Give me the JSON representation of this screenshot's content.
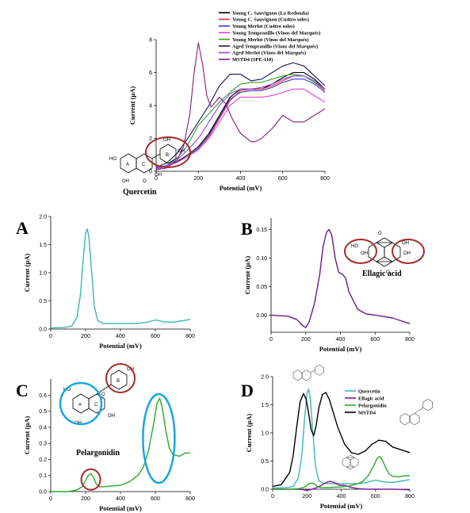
{
  "chart_data": [
    {
      "id": "top",
      "type": "line",
      "xlabel": "Potential (mV)",
      "ylabel": "Current (µA)",
      "xlim": [
        0,
        800
      ],
      "ylim": [
        0,
        8
      ],
      "xticks": [
        0,
        200,
        400,
        600,
        800
      ],
      "yticks": [
        0,
        2,
        4,
        6,
        8
      ],
      "legend_position": "top-right",
      "series": [
        {
          "name": "Young C. Sauvignon (La Redonda)",
          "color": "#000000",
          "x": [
            0,
            50,
            100,
            150,
            200,
            250,
            300,
            350,
            400,
            450,
            500,
            550,
            600,
            650,
            700,
            750,
            800
          ],
          "y": [
            0.15,
            0.3,
            0.6,
            1.0,
            1.5,
            2.3,
            3.4,
            4.5,
            5.0,
            5.0,
            5.0,
            5.3,
            5.7,
            6.0,
            6.0,
            5.6,
            5.0
          ]
        },
        {
          "name": "Young C. Sauvignon (Cu4tro soles)",
          "color": "#e8302a",
          "x": [
            0,
            50,
            100,
            150,
            200,
            250,
            300,
            350,
            400,
            450,
            500,
            550,
            600,
            650,
            700,
            750,
            800
          ],
          "y": [
            0.15,
            0.3,
            0.55,
            0.9,
            1.4,
            2.1,
            3.2,
            4.3,
            4.9,
            5.0,
            5.0,
            5.2,
            5.5,
            5.8,
            5.8,
            5.4,
            4.9
          ]
        },
        {
          "name": "Young Merlot (Cu4tro soles)",
          "color": "#3a3ad8",
          "x": [
            0,
            50,
            100,
            150,
            200,
            250,
            300,
            350,
            400,
            450,
            500,
            550,
            600,
            650,
            700,
            750,
            800
          ],
          "y": [
            0.15,
            0.3,
            0.55,
            0.9,
            1.4,
            2.2,
            3.3,
            4.4,
            4.8,
            4.9,
            4.9,
            5.1,
            5.4,
            5.6,
            5.6,
            5.3,
            4.8
          ]
        },
        {
          "name": "Young Tempranillo  (Vinos del Marqués)",
          "color": "#e040e0",
          "x": [
            0,
            50,
            100,
            150,
            200,
            250,
            300,
            350,
            400,
            450,
            500,
            550,
            600,
            650,
            700,
            750,
            800
          ],
          "y": [
            0.15,
            0.3,
            0.55,
            0.9,
            1.3,
            2.0,
            3.0,
            4.0,
            4.5,
            4.5,
            4.5,
            4.6,
            4.8,
            5.0,
            5.0,
            4.6,
            4.2
          ]
        },
        {
          "name": "Young Merlot (Vinos del Marqués)",
          "color": "#2ca02c",
          "x": [
            0,
            50,
            100,
            150,
            200,
            250,
            300,
            350,
            400,
            450,
            500,
            550,
            600,
            650,
            700,
            750,
            800
          ],
          "y": [
            0.2,
            0.35,
            0.8,
            1.6,
            2.8,
            3.5,
            4.2,
            4.8,
            5.3,
            5.4,
            5.4,
            5.6,
            5.8,
            5.9,
            5.8,
            5.4,
            5.0
          ]
        },
        {
          "name": "Aged Tempranillo (Vinos del Marqués)",
          "color": "#12125e",
          "x": [
            0,
            50,
            100,
            150,
            200,
            250,
            300,
            350,
            400,
            450,
            500,
            550,
            600,
            650,
            700,
            750,
            800
          ],
          "y": [
            0.25,
            0.5,
            1.1,
            2.0,
            3.0,
            4.0,
            5.2,
            5.9,
            5.9,
            5.5,
            5.6,
            6.0,
            6.4,
            6.6,
            6.4,
            5.8,
            5.2
          ]
        },
        {
          "name": "Aged Merlot (Vinos del Marqués)",
          "color": "#8a4ae8",
          "x": [
            0,
            50,
            100,
            150,
            200,
            250,
            300,
            350,
            400,
            450,
            500,
            550,
            600,
            650,
            700,
            750,
            800
          ],
          "y": [
            0.2,
            0.35,
            0.7,
            1.3,
            2.0,
            3.0,
            4.0,
            4.7,
            5.0,
            5.0,
            5.1,
            5.3,
            5.6,
            5.8,
            5.8,
            5.5,
            5.0
          ]
        },
        {
          "name": "MSTD4 (SPE-110)",
          "color": "#8b1a7a",
          "x": [
            0,
            50,
            100,
            130,
            160,
            180,
            200,
            220,
            240,
            260,
            280,
            300,
            330,
            360,
            400,
            450,
            470,
            500,
            550,
            600,
            650,
            700,
            750,
            800
          ],
          "y": [
            0.1,
            0.2,
            0.7,
            1.5,
            3.5,
            6.0,
            7.8,
            6.5,
            4.6,
            3.9,
            4.2,
            4.5,
            4.1,
            3.2,
            2.3,
            1.8,
            1.8,
            2.0,
            2.6,
            3.4,
            3.0,
            3.0,
            3.4,
            3.8
          ]
        }
      ]
    },
    {
      "id": "A",
      "type": "line",
      "panel_label": "A",
      "xlabel": "Potential (mV)",
      "ylabel": "Current (µA)",
      "xlim": [
        0,
        800
      ],
      "ylim": [
        0,
        2.0
      ],
      "xticks": [
        0,
        200,
        400,
        600,
        800
      ],
      "yticks": [
        0,
        0.5,
        1.0,
        1.5,
        2.0
      ],
      "ytick_labels": [
        "0.0",
        "0.5",
        "1.0",
        "1.5",
        "2.0"
      ],
      "molecule": "Quercetin",
      "series": [
        {
          "color": "#3fb6b6",
          "x": [
            0,
            80,
            120,
            150,
            170,
            185,
            200,
            210,
            220,
            235,
            250,
            270,
            300,
            350,
            400,
            500,
            550,
            600,
            650,
            700,
            800
          ],
          "y": [
            0.02,
            0.03,
            0.05,
            0.2,
            0.6,
            1.2,
            1.7,
            1.78,
            1.6,
            1.0,
            0.4,
            0.15,
            0.1,
            0.1,
            0.1,
            0.1,
            0.12,
            0.16,
            0.13,
            0.12,
            0.17
          ]
        }
      ]
    },
    {
      "id": "B",
      "type": "line",
      "panel_label": "B",
      "xlabel": "Potential (mV)",
      "ylabel": "Current (µA)",
      "xlim": [
        0,
        800
      ],
      "ylim": [
        -0.03,
        0.17
      ],
      "xticks": [
        0,
        200,
        400,
        600,
        800
      ],
      "yticks": [
        0.0,
        0.05,
        0.1,
        0.15
      ],
      "ytick_labels": [
        "0.00",
        "0.05",
        "0.10",
        "0.15"
      ],
      "molecule": "Ellagic acid",
      "series": [
        {
          "color": "#6a1a8a",
          "x": [
            0,
            100,
            150,
            180,
            200,
            220,
            250,
            280,
            300,
            320,
            335,
            350,
            370,
            390,
            410,
            430,
            450,
            500,
            550,
            600,
            700,
            800
          ],
          "y": [
            0.0,
            -0.002,
            -0.008,
            -0.018,
            -0.022,
            -0.012,
            0.02,
            0.07,
            0.12,
            0.145,
            0.15,
            0.14,
            0.1,
            0.075,
            0.072,
            0.065,
            0.04,
            0.01,
            0.002,
            0.0,
            -0.005,
            -0.015
          ]
        }
      ]
    },
    {
      "id": "C",
      "type": "line",
      "panel_label": "C",
      "xlabel": "Potential (mV)",
      "ylabel": "Current (µA)",
      "xlim": [
        0,
        800
      ],
      "ylim": [
        0,
        0.7
      ],
      "xticks": [
        0,
        200,
        400,
        600,
        800
      ],
      "yticks": [
        0.0,
        0.1,
        0.2,
        0.3,
        0.4,
        0.5,
        0.6
      ],
      "ytick_labels": [
        "0.0",
        "0.1",
        "0.2",
        "0.3",
        "0.4",
        "0.5",
        "0.6"
      ],
      "molecule": "Pelargonidin",
      "ring_labels": [
        "A",
        "C",
        "B"
      ],
      "series": [
        {
          "color": "#2aa82a",
          "x": [
            0,
            100,
            150,
            180,
            200,
            215,
            230,
            245,
            260,
            280,
            300,
            400,
            450,
            500,
            530,
            560,
            590,
            610,
            625,
            640,
            660,
            680,
            700,
            740,
            770,
            800
          ],
          "y": [
            0.0,
            0.0,
            0.01,
            0.03,
            0.07,
            0.1,
            0.11,
            0.09,
            0.05,
            0.03,
            0.03,
            0.04,
            0.06,
            0.1,
            0.15,
            0.25,
            0.42,
            0.55,
            0.58,
            0.52,
            0.38,
            0.27,
            0.23,
            0.22,
            0.24,
            0.24
          ]
        }
      ]
    },
    {
      "id": "D",
      "type": "line",
      "panel_label": "D",
      "xlabel": "Potential (mV)",
      "ylabel": "Current (µA)",
      "xlim": [
        0,
        800
      ],
      "ylim": [
        0,
        2.0
      ],
      "xticks": [
        0,
        200,
        400,
        600,
        800
      ],
      "yticks": [
        0,
        0.5,
        1.0,
        1.5,
        2.0
      ],
      "ytick_labels": [
        "0.0",
        "0.5",
        "1.0",
        "1.5",
        "2.0"
      ],
      "legend_position": "top-right",
      "series": [
        {
          "name": "Quercetin",
          "color": "#3fb6b6",
          "x": [
            0,
            80,
            120,
            150,
            170,
            185,
            200,
            210,
            220,
            235,
            250,
            270,
            300,
            350,
            400,
            500,
            550,
            600,
            650,
            700,
            800
          ],
          "y": [
            0.02,
            0.03,
            0.05,
            0.2,
            0.6,
            1.2,
            1.7,
            1.78,
            1.6,
            1.0,
            0.4,
            0.15,
            0.1,
            0.1,
            0.1,
            0.1,
            0.12,
            0.16,
            0.13,
            0.12,
            0.17
          ]
        },
        {
          "name": "Ellagic acid",
          "color": "#7a1a9a",
          "x": [
            0,
            100,
            150,
            180,
            200,
            220,
            250,
            280,
            300,
            320,
            335,
            350,
            370,
            390,
            410,
            430,
            450,
            500,
            550,
            600,
            700,
            800
          ],
          "y": [
            0.0,
            0.0,
            0.0,
            -0.01,
            -0.02,
            -0.01,
            0.02,
            0.06,
            0.1,
            0.13,
            0.14,
            0.13,
            0.1,
            0.07,
            0.07,
            0.06,
            0.04,
            0.01,
            0.0,
            0.0,
            0.0,
            -0.01
          ]
        },
        {
          "name": "Pelargonidin",
          "color": "#2aa82a",
          "x": [
            0,
            100,
            150,
            180,
            200,
            215,
            230,
            245,
            260,
            280,
            300,
            400,
            450,
            500,
            530,
            560,
            590,
            610,
            625,
            640,
            660,
            680,
            700,
            740,
            770,
            800
          ],
          "y": [
            0.0,
            0.0,
            0.01,
            0.03,
            0.07,
            0.1,
            0.11,
            0.09,
            0.05,
            0.03,
            0.03,
            0.04,
            0.06,
            0.1,
            0.15,
            0.25,
            0.42,
            0.55,
            0.58,
            0.52,
            0.38,
            0.27,
            0.23,
            0.22,
            0.24,
            0.24
          ]
        },
        {
          "name": "MSTD4",
          "color": "#000000",
          "x": [
            0,
            50,
            100,
            120,
            140,
            160,
            180,
            195,
            210,
            225,
            240,
            255,
            270,
            290,
            310,
            330,
            350,
            380,
            420,
            460,
            500,
            540,
            580,
            620,
            660,
            700,
            750,
            800
          ],
          "y": [
            0.05,
            0.08,
            0.3,
            0.6,
            1.1,
            1.55,
            1.7,
            1.6,
            1.35,
            1.05,
            0.95,
            1.15,
            1.45,
            1.68,
            1.72,
            1.6,
            1.4,
            1.1,
            0.8,
            0.65,
            0.62,
            0.68,
            0.8,
            0.87,
            0.85,
            0.75,
            0.7,
            0.65
          ]
        }
      ]
    }
  ]
}
